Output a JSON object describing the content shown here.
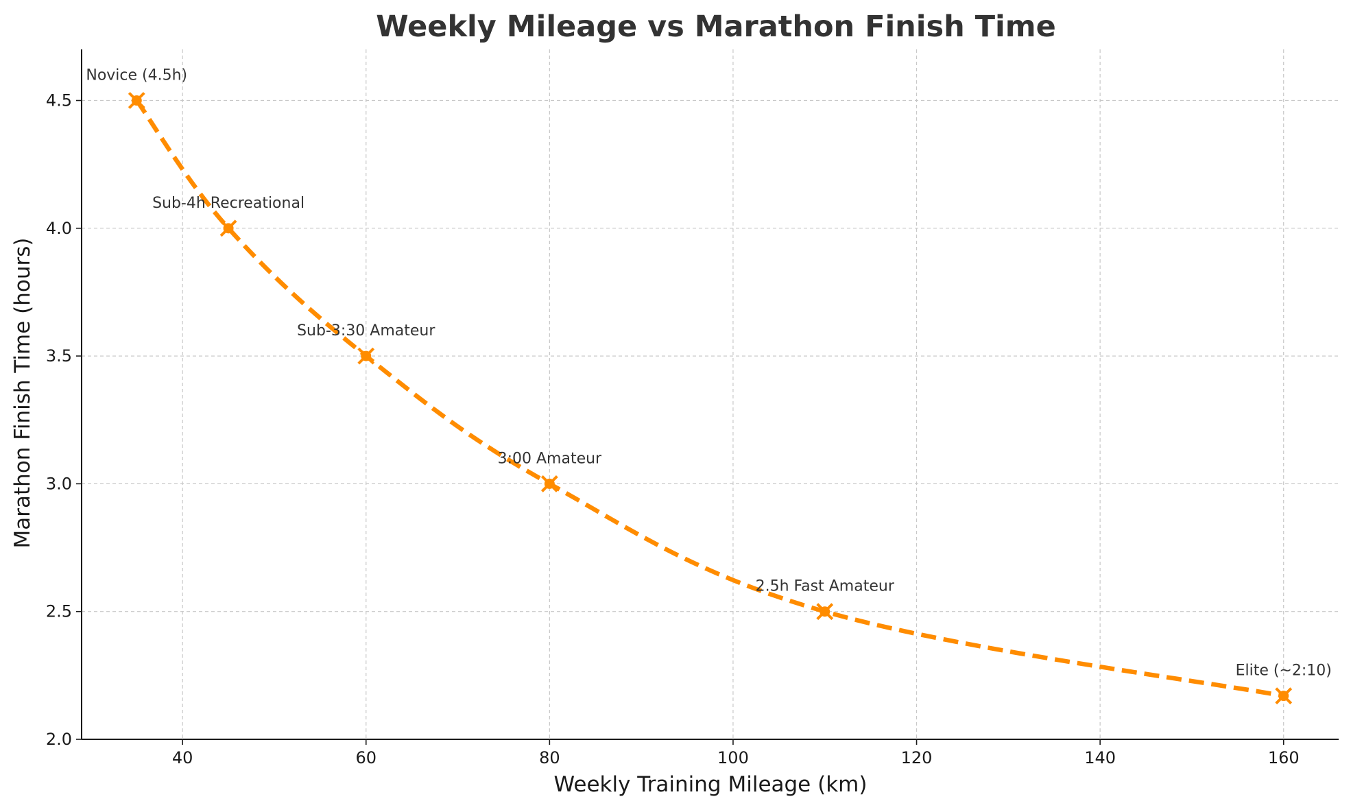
{
  "chart_data": {
    "type": "line",
    "title": "Weekly Mileage vs Marathon Finish Time",
    "xlabel": "Weekly Training Mileage (km)",
    "ylabel": "Marathon Finish Time (hours)",
    "xlim": [
      29,
      166
    ],
    "ylim": [
      2.0,
      4.7
    ],
    "xticks": [
      40,
      60,
      80,
      100,
      120,
      140,
      160
    ],
    "yticks": [
      2.0,
      2.5,
      3.0,
      3.5,
      4.0,
      4.5
    ],
    "grid": true,
    "legend": "none",
    "series": [
      {
        "color": "#ff8c00",
        "line_style": "dashed",
        "marker": "x with dot",
        "points": [
          {
            "x": 35,
            "y": 4.5,
            "label": "Novice (4.5h)"
          },
          {
            "x": 45,
            "y": 4.0,
            "label": "Sub-4h Recreational"
          },
          {
            "x": 60,
            "y": 3.5,
            "label": "Sub-3:30 Amateur"
          },
          {
            "x": 80,
            "y": 3.0,
            "label": "3:00 Amateur"
          },
          {
            "x": 110,
            "y": 2.5,
            "label": "2.5h Fast Amateur"
          },
          {
            "x": 160,
            "y": 2.17,
            "label": "Elite (~2:10)"
          }
        ]
      }
    ]
  }
}
